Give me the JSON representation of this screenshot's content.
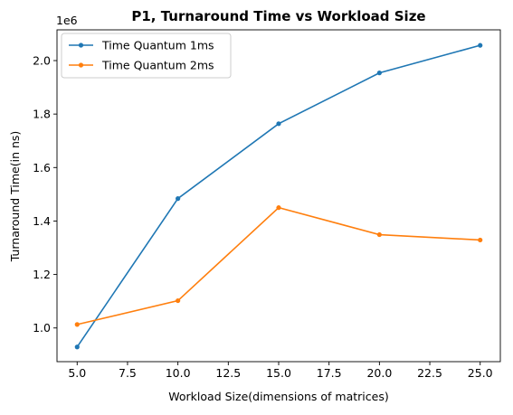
{
  "chart_data": {
    "type": "line",
    "title": "P1, Turnaround Time vs Workload Size",
    "xlabel": "Workload Size(dimensions of matrices)",
    "ylabel": "Turnaround Time(in ns)",
    "y_offset_label": "1e6",
    "x": [
      5,
      10,
      15,
      20,
      25
    ],
    "xlim": [
      4.0,
      26.0
    ],
    "ylim": [
      0.874,
      2.115
    ],
    "x_ticks": [
      5.0,
      7.5,
      10.0,
      12.5,
      15.0,
      17.5,
      20.0,
      22.5,
      25.0
    ],
    "x_tick_labels": [
      "5.0",
      "7.5",
      "10.0",
      "12.5",
      "15.0",
      "17.5",
      "20.0",
      "22.5",
      "25.0"
    ],
    "y_ticks": [
      1.0,
      1.2,
      1.4,
      1.6,
      1.8,
      2.0
    ],
    "y_tick_labels": [
      "1.0",
      "1.2",
      "1.4",
      "1.6",
      "1.8",
      "2.0"
    ],
    "legend_position": "top-left",
    "grid": false,
    "series": [
      {
        "name": "Time Quantum 1ms",
        "color": "#1f77b4",
        "values": [
          0.929,
          1.484,
          1.764,
          1.954,
          2.057
        ]
      },
      {
        "name": "Time Quantum 2ms",
        "color": "#ff7f0e",
        "values": [
          1.013,
          1.102,
          1.45,
          1.349,
          1.329
        ]
      }
    ]
  }
}
